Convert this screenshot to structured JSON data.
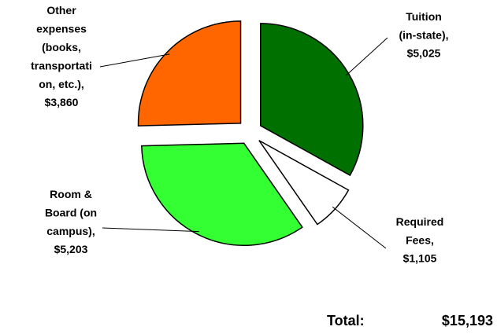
{
  "chart_data": {
    "type": "pie",
    "categories": [
      "Tuition (in-state),",
      "Required Fees,",
      "Room & Board (on campus),",
      "Other expenses (books, transportation, etc.),"
    ],
    "values": [
      5025,
      1105,
      5203,
      3860
    ],
    "value_labels": [
      "$5,025",
      "$1,105",
      "$5,203",
      "$3,860"
    ],
    "colors": [
      "#007000",
      "#ffffff",
      "#33ff33",
      "#ff6600"
    ],
    "total": {
      "label": "Total:",
      "value": 15193,
      "value_label": "$15,193"
    }
  }
}
